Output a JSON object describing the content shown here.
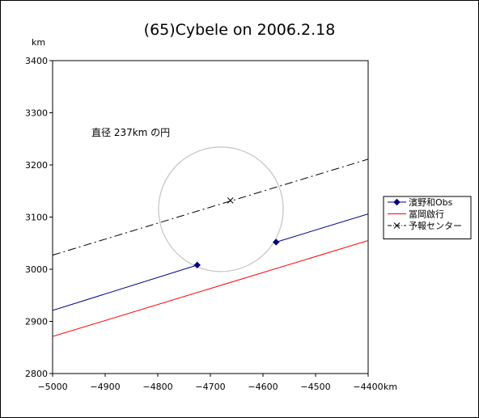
{
  "chart_data": {
    "type": "line",
    "title": "(65)Cybele on 2006.2.18",
    "xlabel": "km",
    "ylabel": "km",
    "xlim": [
      -5000,
      -4400
    ],
    "ylim": [
      2800,
      3400
    ],
    "xticks": [
      -5000,
      -4900,
      -4800,
      -4700,
      -4600,
      -4500,
      -4400
    ],
    "yticks": [
      2800,
      2900,
      3000,
      3100,
      3200,
      3300,
      3400
    ],
    "xtick_labels": [
      "−5000",
      "−4900",
      "−4800",
      "−4700",
      "−4600",
      "−4500",
      "−4400"
    ],
    "ytick_labels": [
      "2800",
      "2900",
      "3000",
      "3100",
      "3200",
      "3300",
      "3400"
    ],
    "grid": false,
    "legend_position": "right",
    "annotation": "直径 237km の円",
    "circle": {
      "center": [
        -4680,
        3115
      ],
      "diameter": 237,
      "color": "#c8c8c8"
    },
    "series": [
      {
        "name": "濱野和Obs",
        "color": "#000080",
        "style": "solid",
        "marker": "diamond",
        "segments": [
          [
            [
              -5000,
              2921
            ],
            [
              -4725,
              3008
            ]
          ],
          [
            [
              -4575,
              3052
            ],
            [
              -4400,
              3106
            ]
          ]
        ],
        "markers": [
          [
            -4725,
            3008
          ],
          [
            -4575,
            3052
          ]
        ]
      },
      {
        "name": "冨岡啟行",
        "color": "#ff0000",
        "style": "solid",
        "marker": "none",
        "segments": [
          [
            [
              -5000,
              2871
            ],
            [
              -4400,
              3055
            ]
          ]
        ],
        "markers": []
      },
      {
        "name": "予報センター",
        "color": "#000000",
        "style": "dashdot",
        "marker": "x",
        "segments": [
          [
            [
              -5000,
              3027
            ],
            [
              -4400,
              3211
            ]
          ]
        ],
        "markers": [
          [
            -4662,
            3132
          ]
        ]
      }
    ]
  }
}
